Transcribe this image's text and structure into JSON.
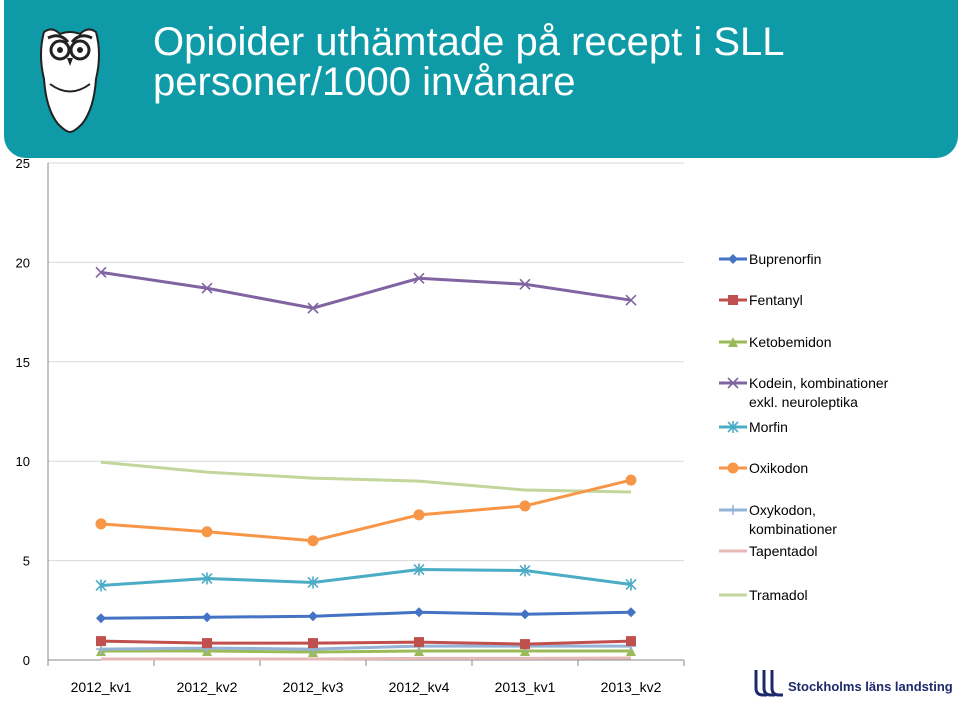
{
  "header": {
    "title_line1": "Opioider uthämtade på recept i SLL",
    "title_line2": "personer/1000 invånare",
    "bg_color": "#0e9aa7"
  },
  "logo": {
    "text": "Stockholms läns landsting"
  },
  "chart_data": {
    "type": "line",
    "title": "Opioider uthämtade på recept i SLL personer/1000 invånare",
    "xlabel": "",
    "ylabel": "",
    "ylim": [
      0,
      25
    ],
    "yticks": [
      0,
      5,
      10,
      15,
      20,
      25
    ],
    "grid": true,
    "legend_position": "right",
    "categories": [
      "2012_kv1",
      "2012_kv2",
      "2012_kv3",
      "2012_kv4",
      "2013_kv1",
      "2013_kv2"
    ],
    "series": [
      {
        "name": "Buprenorfin",
        "legend_lines": [
          "Buprenorfin"
        ],
        "color": "#4472c4",
        "marker": "diamond",
        "values": [
          2.1,
          2.15,
          2.2,
          2.4,
          2.3,
          2.4
        ]
      },
      {
        "name": "Fentanyl",
        "legend_lines": [
          "Fentanyl"
        ],
        "color": "#c0504d",
        "marker": "square",
        "values": [
          0.95,
          0.85,
          0.85,
          0.9,
          0.8,
          0.95
        ]
      },
      {
        "name": "Ketobemidon",
        "legend_lines": [
          "Ketobemidon"
        ],
        "color": "#9bbb59",
        "marker": "triangle",
        "values": [
          0.45,
          0.45,
          0.4,
          0.45,
          0.45,
          0.45
        ]
      },
      {
        "name": "Kodein, kombinationer exkl. neuroleptika",
        "legend_lines": [
          "Kodein, kombinationer",
          "exkl. neuroleptika"
        ],
        "color": "#8064a2",
        "marker": "x",
        "values": [
          19.5,
          18.7,
          17.7,
          19.2,
          18.9,
          18.1
        ]
      },
      {
        "name": "Morfin",
        "legend_lines": [
          "Morfin"
        ],
        "color": "#4bacc6",
        "marker": "star",
        "values": [
          3.75,
          4.1,
          3.9,
          4.55,
          4.5,
          3.8
        ]
      },
      {
        "name": "Oxikodon",
        "legend_lines": [
          "Oxikodon"
        ],
        "color": "#f79646",
        "marker": "circle",
        "values": [
          6.85,
          6.45,
          6.0,
          7.3,
          7.75,
          9.05
        ]
      },
      {
        "name": "Oxykodon, kombinationer",
        "legend_lines": [
          "Oxykodon,",
          "kombinationer"
        ],
        "color": "#95b3d7",
        "marker": "plus",
        "values": [
          0.55,
          0.6,
          0.55,
          0.7,
          0.7,
          0.7
        ]
      },
      {
        "name": "Tapentadol",
        "legend_lines": [
          "Tapentadol"
        ],
        "color": "#e6b9b8",
        "marker": "none",
        "values": [
          0.05,
          0.05,
          0.05,
          0.08,
          0.08,
          0.1
        ]
      },
      {
        "name": "Tramadol",
        "legend_lines": [
          "Tramadol"
        ],
        "color": "#c3d69b",
        "marker": "none",
        "values": [
          9.95,
          9.45,
          9.15,
          9.0,
          8.55,
          8.45
        ]
      }
    ]
  }
}
